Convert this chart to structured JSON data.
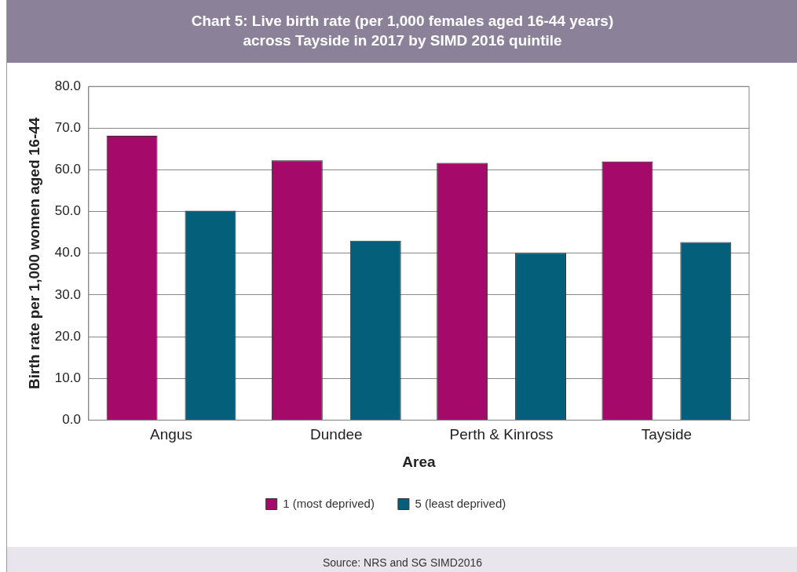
{
  "chart_data": {
    "type": "bar",
    "title": "Chart 5: Live birth rate (per 1,000 females aged 16-44 years)\nacross Tayside in 2017 by SIMD 2016 quintile",
    "xlabel": "Area",
    "ylabel": "Birth rate per 1,000 women aged 16-44",
    "categories": [
      "Angus",
      "Dundee",
      "Perth & Kinross",
      "Tayside"
    ],
    "series": [
      {
        "name": "1 (most deprived)",
        "color": "#a50a6a",
        "values": [
          68.2,
          62.3,
          61.7,
          62.0
        ]
      },
      {
        "name": "5 (least deprived)",
        "color": "#04607a",
        "values": [
          50.2,
          43.0,
          40.1,
          42.7
        ]
      }
    ],
    "ylim": [
      0,
      80
    ],
    "yticks": [
      {
        "value": 0,
        "label": "0.0"
      },
      {
        "value": 10,
        "label": "10.0"
      },
      {
        "value": 20,
        "label": "20.0"
      },
      {
        "value": 30,
        "label": "30.0"
      },
      {
        "value": 40,
        "label": "40.0"
      },
      {
        "value": 50,
        "label": "50.0"
      },
      {
        "value": 60,
        "label": "60.0"
      },
      {
        "value": 70,
        "label": "70.0"
      },
      {
        "value": 80,
        "label": "80.0"
      }
    ],
    "grid": "y",
    "legend": "bottom",
    "annotations": [
      "Source: NRS and SG SIMD2016"
    ]
  }
}
